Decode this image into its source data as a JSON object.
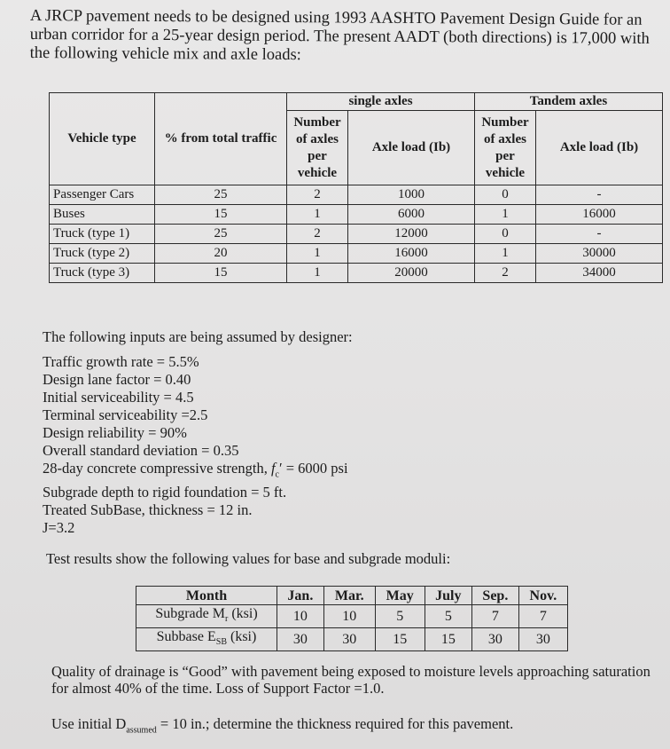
{
  "intro": "A JRCP pavement needs to be designed using 1993 AASHTO Pavement Design Guide for an urban corridor for a 25-year design period. The present AADT (both directions) is 17,000 with the following vehicle mix and axle loads:",
  "vehicle_table": {
    "headers": {
      "vehicle_type": "Vehicle type",
      "percent": "% from total traffic",
      "single_axles": "single axles",
      "tandem_axles": "Tandem axles",
      "num_axles": "Number of axles per vehicle",
      "axle_load": "Axle load (Ib)"
    },
    "rows": [
      [
        "Passenger Cars",
        "25",
        "2",
        "1000",
        "0",
        "-"
      ],
      [
        "Buses",
        "15",
        "1",
        "6000",
        "1",
        "16000"
      ],
      [
        "Truck (type 1)",
        "25",
        "2",
        "12000",
        "0",
        "-"
      ],
      [
        "Truck (type 2)",
        "20",
        "1",
        "16000",
        "1",
        "30000"
      ],
      [
        "Truck (type 3)",
        "15",
        "1",
        "20000",
        "2",
        "34000"
      ]
    ]
  },
  "inputs": {
    "lead": "The following inputs are being assumed by designer:",
    "items": [
      "Traffic growth rate = 5.5%",
      "Design lane factor = 0.40",
      "Initial serviceability = 4.5",
      "Terminal serviceability =2.5",
      "Design reliability = 90%",
      "Overall standard deviation = 0.35"
    ],
    "concrete_prefix": "28-day concrete compressive strength, ",
    "concrete_symbol": "f",
    "concrete_sub": "c",
    "concrete_suffix": "′ = 6000 psi",
    "items2": [
      "Subgrade depth to rigid foundation = 5 ft.",
      "Treated SubBase, thickness = 12 in.",
      "J=3.2"
    ]
  },
  "test_text": "Test results show the following values for base and subgrade moduli:",
  "moduli_table": {
    "month_label": "Month",
    "months": [
      "Jan.",
      "Mar.",
      "May",
      "July",
      "Sep.",
      "Nov."
    ],
    "subgrade_label": "Subgrade M",
    "subgrade_sub": "r",
    "subgrade_unit": " (ksi)",
    "subgrade": [
      "10",
      "10",
      "5",
      "5",
      "7",
      "7"
    ],
    "subbase_label": "Subbase E",
    "subbase_sub": "SB",
    "subbase_unit": " (ksi)",
    "subbase": [
      "30",
      "30",
      "15",
      "15",
      "30",
      "30"
    ]
  },
  "quality": "Quality of drainage is “Good” with pavement being exposed to moisture levels approaching saturation for almost 40% of the time. Loss of Support Factor =1.0.",
  "final": {
    "prefix": "Use initial D",
    "sub": "assumed",
    "suffix": " = 10 in.; determine the thickness required for this pavement."
  }
}
